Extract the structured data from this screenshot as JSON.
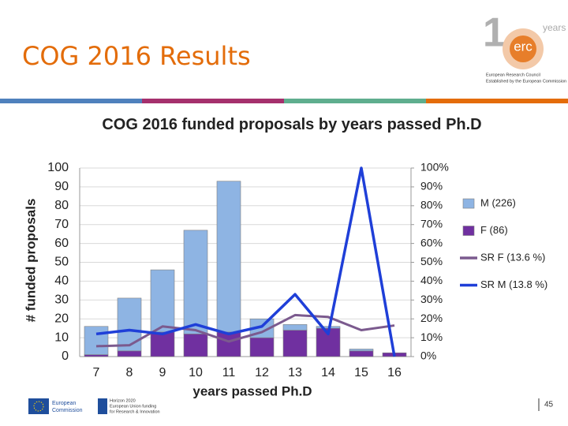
{
  "slide_title": "COG 2016 Results",
  "logo": {
    "mark": "erc",
    "years": "years",
    "line1": "European Research Council",
    "line2": "Established by the European Commission"
  },
  "footer": {
    "commission_line1": "European",
    "commission_line2": "Commission",
    "horizon_line1": "Horizon 2020",
    "horizon_line2": "European Union funding",
    "horizon_line3": "for Research & Innovation",
    "page_number": "45"
  },
  "chart_data": {
    "type": "bar",
    "stacked": true,
    "title": "COG 2016 funded proposals by years passed Ph.D",
    "x_label": "years passed Ph.D",
    "y_label": "# funded proposals",
    "categories": [
      "7",
      "8",
      "9",
      "10",
      "11",
      "12",
      "13",
      "14",
      "15",
      "16"
    ],
    "series": [
      {
        "name": "F (86)",
        "color": "#7030a0",
        "values": [
          1,
          3,
          13,
          12,
          13,
          10,
          14,
          15,
          3,
          2
        ]
      },
      {
        "name": "M (226)",
        "color": "#8eb4e3",
        "values": [
          15,
          28,
          33,
          55,
          80,
          10,
          3,
          1,
          1,
          0
        ]
      },
      {
        "name": "SR F (13.6 %)",
        "type": "line",
        "axis": "y2",
        "color": "#7b5a8e",
        "values": [
          5.5,
          6,
          16,
          14,
          8,
          13,
          22,
          21,
          14,
          16.5
        ]
      },
      {
        "name": "SR M (13.8 %)",
        "type": "line",
        "axis": "y2",
        "color": "#1f3fd8",
        "values": [
          12,
          14,
          12,
          17,
          12,
          16,
          33,
          12,
          100,
          0
        ]
      }
    ],
    "legend_order": [
      1,
      0,
      2,
      3
    ],
    "legend": "right",
    "grid": true,
    "ylim": [
      0,
      100
    ],
    "yticks": [
      0,
      10,
      20,
      30,
      40,
      50,
      60,
      70,
      80,
      90,
      100
    ],
    "y2lim": [
      0,
      100
    ],
    "y2ticks": [
      {
        "value": 0,
        "label": "0%"
      },
      {
        "value": 10,
        "label": "10%"
      },
      {
        "value": 20,
        "label": "20%"
      },
      {
        "value": 30,
        "label": "30%"
      },
      {
        "value": 40,
        "label": "40%"
      },
      {
        "value": 50,
        "label": "50%"
      },
      {
        "value": 60,
        "label": "60%"
      },
      {
        "value": 70,
        "label": "70%"
      },
      {
        "value": 80,
        "label": "80%"
      },
      {
        "value": 90,
        "label": "90%"
      },
      {
        "value": 100,
        "label": "100%"
      }
    ]
  }
}
